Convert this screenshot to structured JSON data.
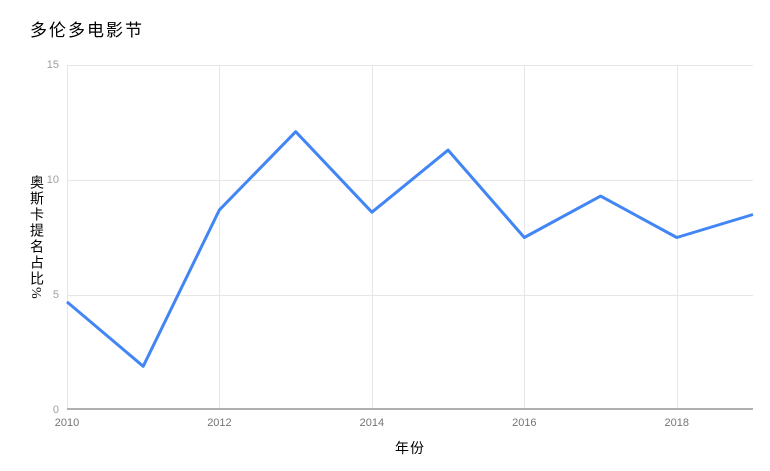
{
  "chart_data": {
    "type": "line",
    "title": "多伦多电影节",
    "xlabel": "年份",
    "ylabel": "奥斯卡提名占比%",
    "x": [
      2010,
      2011,
      2012,
      2013,
      2014,
      2015,
      2016,
      2017,
      2018,
      2019
    ],
    "values": [
      4.7,
      1.9,
      8.7,
      12.1,
      8.6,
      11.3,
      7.5,
      9.3,
      7.5,
      8.5
    ],
    "xlim": [
      2010,
      2019
    ],
    "ylim": [
      0,
      15
    ],
    "xticks": [
      2010,
      2012,
      2014,
      2016,
      2018
    ],
    "yticks": [
      0,
      5,
      10,
      15
    ],
    "grid": true,
    "legend_position": "none",
    "colors": {
      "line": "#4285F4",
      "gridline": "#E6E6E6",
      "baseline": "#B0B0B0",
      "y_tick_label": "#9E9E9E",
      "x_tick_label": "#757575",
      "background": "#FFFFFF"
    }
  }
}
